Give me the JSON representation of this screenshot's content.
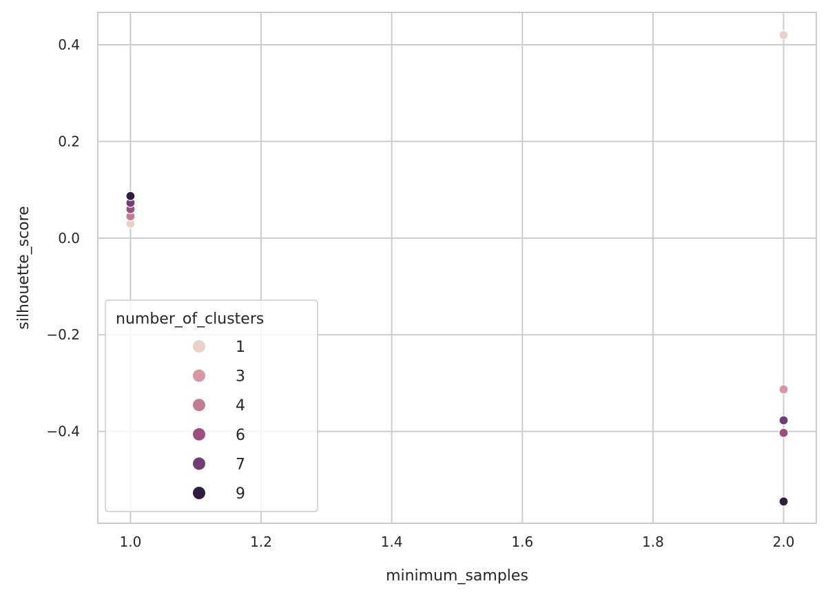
{
  "chart_data": {
    "type": "scatter",
    "xlabel": "minimum_samples",
    "ylabel": "silhouette_score",
    "xlim": [
      0.95,
      2.05
    ],
    "ylim": [
      -0.59,
      0.467
    ],
    "x_ticks": [
      1.0,
      1.2,
      1.4,
      1.6,
      1.8,
      2.0
    ],
    "x_tick_labels": [
      "1.0",
      "1.2",
      "1.4",
      "1.6",
      "1.8",
      "2.0"
    ],
    "y_ticks": [
      -0.4,
      -0.2,
      0.0,
      0.2,
      0.4
    ],
    "y_tick_labels": [
      "−0.4",
      "−0.2",
      "0.0",
      "0.2",
      "0.4"
    ],
    "grid": true,
    "legend": {
      "title": "number_of_clusters",
      "placement": "lower-left",
      "entries": [
        {
          "label": "1",
          "color": "#ebcfc9"
        },
        {
          "label": "3",
          "color": "#d997a5"
        },
        {
          "label": "4",
          "color": "#c47c94"
        },
        {
          "label": "6",
          "color": "#9b5080"
        },
        {
          "label": "7",
          "color": "#733e74"
        },
        {
          "label": "9",
          "color": "#2d1e3e"
        }
      ]
    },
    "points": [
      {
        "x": 1.0,
        "y": 0.03,
        "clusters": "1"
      },
      {
        "x": 1.0,
        "y": 0.045,
        "clusters": "4"
      },
      {
        "x": 1.0,
        "y": 0.06,
        "clusters": "6"
      },
      {
        "x": 1.0,
        "y": 0.073,
        "clusters": "7"
      },
      {
        "x": 1.0,
        "y": 0.087,
        "clusters": "9"
      },
      {
        "x": 2.0,
        "y": 0.42,
        "clusters": "1"
      },
      {
        "x": 2.0,
        "y": -0.313,
        "clusters": "3"
      },
      {
        "x": 2.0,
        "y": -0.377,
        "clusters": "7"
      },
      {
        "x": 2.0,
        "y": -0.403,
        "clusters": "6"
      },
      {
        "x": 2.0,
        "y": -0.545,
        "clusters": "9"
      }
    ]
  }
}
